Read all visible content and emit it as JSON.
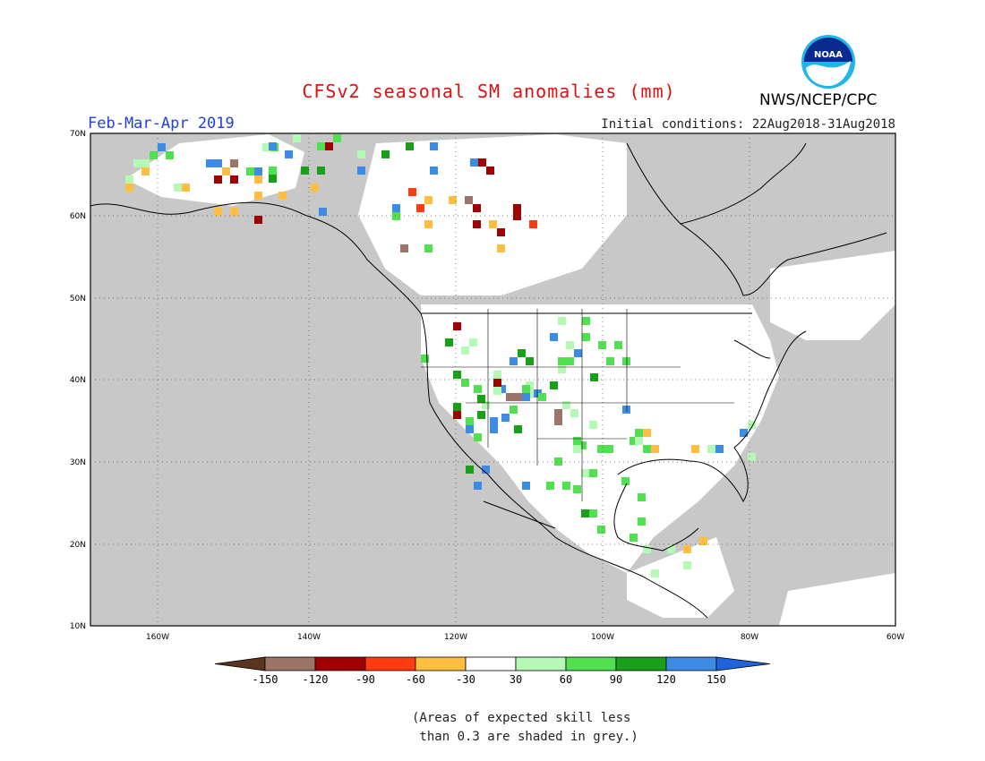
{
  "header": {
    "title": "CFSv2 seasonal SM anomalies (mm)",
    "season": "Feb-Mar-Apr 2019",
    "initial_conditions": "Initial conditions: 22Aug2018-31Aug2018",
    "agency": "NWS/NCEP/CPC",
    "logo_text": "NOAA"
  },
  "map": {
    "lon_labels": [
      "160W",
      "140W",
      "120W",
      "100W",
      "80W",
      "60W"
    ],
    "lat_labels": [
      "70N",
      "60N",
      "50N",
      "40N",
      "30N",
      "20N",
      "10N"
    ],
    "region": "North America",
    "colors": {
      "grey_low_skill": "#c8c8c8",
      "land_outline": "#000000",
      "ocean_neutral": "#ffffff"
    }
  },
  "legend": {
    "tick_labels": [
      "-150",
      "-120",
      "-90",
      "-60",
      "-30",
      "30",
      "60",
      "90",
      "120",
      "150"
    ],
    "colors": [
      "#5a3520",
      "#9c7468",
      "#a00000",
      "#ff3c10",
      "#ffbe40",
      "#ffffff",
      "#b4fab4",
      "#50e050",
      "#18a018",
      "#3c8ce6",
      "#1e64dc"
    ]
  },
  "note": {
    "line1": "(Areas of expected skill less",
    "line2": " than 0.3 are shaded in grey.)"
  }
}
